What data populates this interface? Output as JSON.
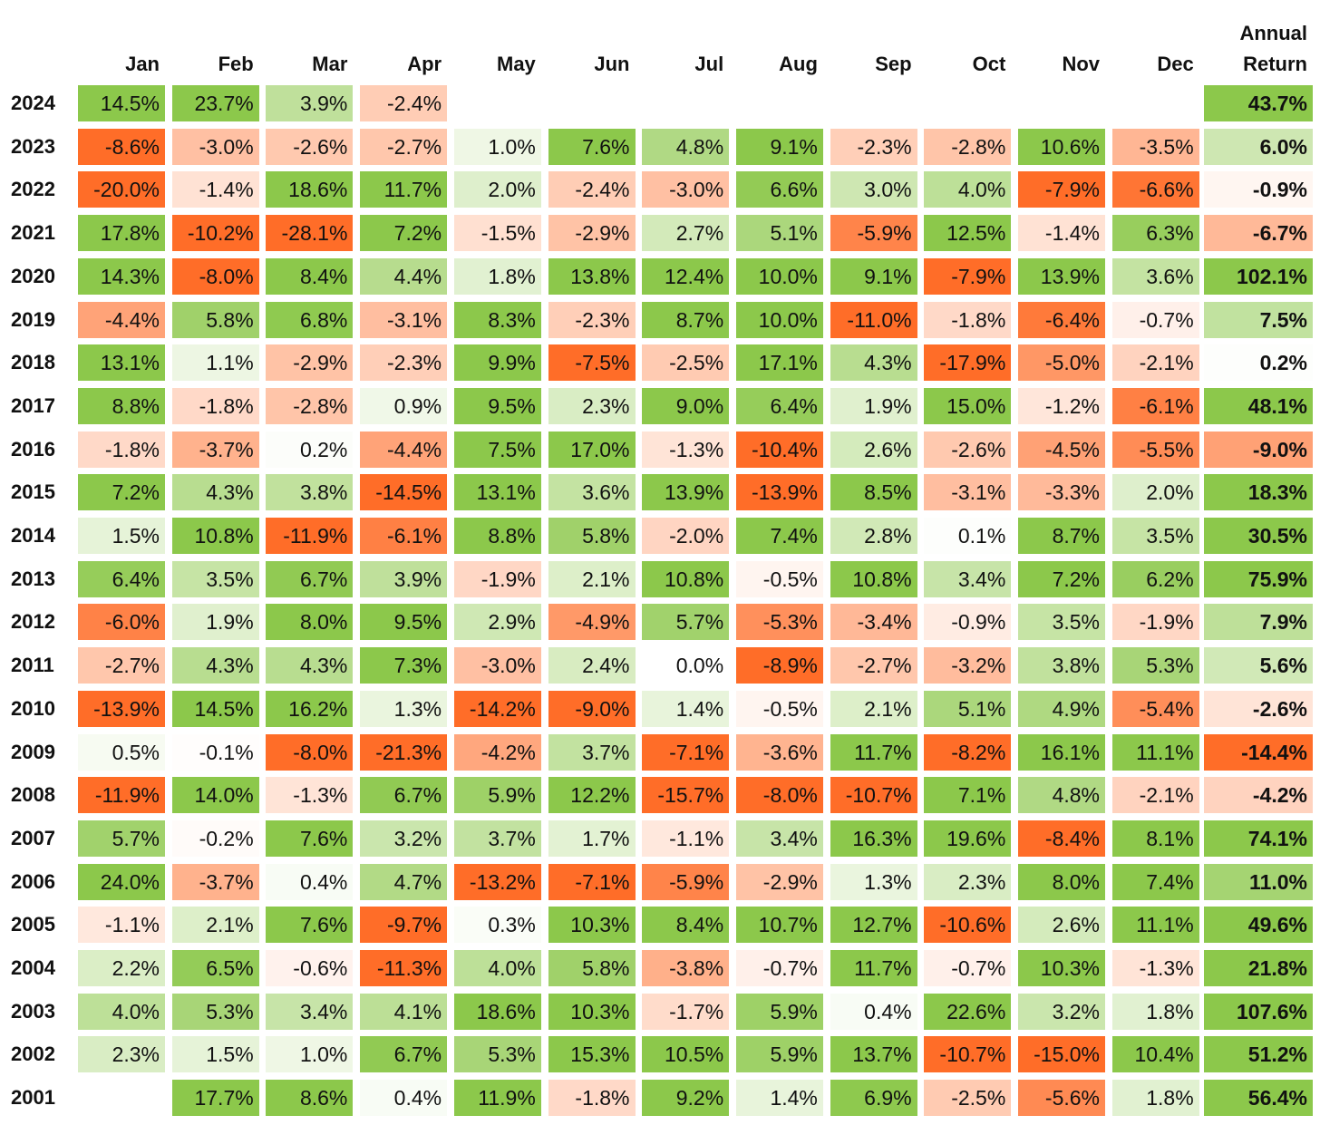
{
  "chart_data": {
    "type": "heatmap",
    "title": "",
    "columns": [
      "Jan",
      "Feb",
      "Mar",
      "Apr",
      "May",
      "Jun",
      "Jul",
      "Aug",
      "Sep",
      "Oct",
      "Nov",
      "Dec"
    ],
    "annual_header": [
      "Annual",
      "Return"
    ],
    "colors": {
      "positive": "#8cc84b",
      "negative": "#ff6d28",
      "neutral": "#ffffff"
    },
    "rows": [
      {
        "year": "2024",
        "months": [
          "14.5%",
          "23.7%",
          "3.9%",
          "-2.4%",
          "",
          "",
          "",
          "",
          "",
          "",
          "",
          ""
        ],
        "annual": "43.7%"
      },
      {
        "year": "2023",
        "months": [
          "-8.6%",
          "-3.0%",
          "-2.6%",
          "-2.7%",
          "1.0%",
          "7.6%",
          "4.8%",
          "9.1%",
          "-2.3%",
          "-2.8%",
          "10.6%",
          "-3.5%"
        ],
        "annual": "6.0%"
      },
      {
        "year": "2022",
        "months": [
          "-20.0%",
          "-1.4%",
          "18.6%",
          "11.7%",
          "2.0%",
          "-2.4%",
          "-3.0%",
          "6.6%",
          "3.0%",
          "4.0%",
          "-7.9%",
          "-6.6%"
        ],
        "annual": "-0.9%"
      },
      {
        "year": "2021",
        "months": [
          "17.8%",
          "-10.2%",
          "-28.1%",
          "7.2%",
          "-1.5%",
          "-2.9%",
          "2.7%",
          "5.1%",
          "-5.9%",
          "12.5%",
          "-1.4%",
          "6.3%"
        ],
        "annual": "-6.7%"
      },
      {
        "year": "2020",
        "months": [
          "14.3%",
          "-8.0%",
          "8.4%",
          "4.4%",
          "1.8%",
          "13.8%",
          "12.4%",
          "10.0%",
          "9.1%",
          "-7.9%",
          "13.9%",
          "3.6%"
        ],
        "annual": "102.1%"
      },
      {
        "year": "2019",
        "months": [
          "-4.4%",
          "5.8%",
          "6.8%",
          "-3.1%",
          "8.3%",
          "-2.3%",
          "8.7%",
          "10.0%",
          "-11.0%",
          "-1.8%",
          "-6.4%",
          "-0.7%"
        ],
        "annual": "7.5%"
      },
      {
        "year": "2018",
        "months": [
          "13.1%",
          "1.1%",
          "-2.9%",
          "-2.3%",
          "9.9%",
          "-7.5%",
          "-2.5%",
          "17.1%",
          "4.3%",
          "-17.9%",
          "-5.0%",
          "-2.1%"
        ],
        "annual": "0.2%"
      },
      {
        "year": "2017",
        "months": [
          "8.8%",
          "-1.8%",
          "-2.8%",
          "0.9%",
          "9.5%",
          "2.3%",
          "9.0%",
          "6.4%",
          "1.9%",
          "15.0%",
          "-1.2%",
          "-6.1%"
        ],
        "annual": "48.1%"
      },
      {
        "year": "2016",
        "months": [
          "-1.8%",
          "-3.7%",
          "0.2%",
          "-4.4%",
          "7.5%",
          "17.0%",
          "-1.3%",
          "-10.4%",
          "2.6%",
          "-2.6%",
          "-4.5%",
          "-5.5%"
        ],
        "annual": "-9.0%"
      },
      {
        "year": "2015",
        "months": [
          "7.2%",
          "4.3%",
          "3.8%",
          "-14.5%",
          "13.1%",
          "3.6%",
          "13.9%",
          "-13.9%",
          "8.5%",
          "-3.1%",
          "-3.3%",
          "2.0%"
        ],
        "annual": "18.3%"
      },
      {
        "year": "2014",
        "months": [
          "1.5%",
          "10.8%",
          "-11.9%",
          "-6.1%",
          "8.8%",
          "5.8%",
          "-2.0%",
          "7.4%",
          "2.8%",
          "0.1%",
          "8.7%",
          "3.5%"
        ],
        "annual": "30.5%"
      },
      {
        "year": "2013",
        "months": [
          "6.4%",
          "3.5%",
          "6.7%",
          "3.9%",
          "-1.9%",
          "2.1%",
          "10.8%",
          "-0.5%",
          "10.8%",
          "3.4%",
          "7.2%",
          "6.2%"
        ],
        "annual": "75.9%"
      },
      {
        "year": "2012",
        "months": [
          "-6.0%",
          "1.9%",
          "8.0%",
          "9.5%",
          "2.9%",
          "-4.9%",
          "5.7%",
          "-5.3%",
          "-3.4%",
          "-0.9%",
          "3.5%",
          "-1.9%"
        ],
        "annual": "7.9%"
      },
      {
        "year": "2011",
        "months": [
          "-2.7%",
          "4.3%",
          "4.3%",
          "7.3%",
          "-3.0%",
          "2.4%",
          "0.0%",
          "-8.9%",
          "-2.7%",
          "-3.2%",
          "3.8%",
          "5.3%"
        ],
        "annual": "5.6%"
      },
      {
        "year": "2010",
        "months": [
          "-13.9%",
          "14.5%",
          "16.2%",
          "1.3%",
          "-14.2%",
          "-9.0%",
          "1.4%",
          "-0.5%",
          "2.1%",
          "5.1%",
          "4.9%",
          "-5.4%"
        ],
        "annual": "-2.6%"
      },
      {
        "year": "2009",
        "months": [
          "0.5%",
          "-0.1%",
          "-8.0%",
          "-21.3%",
          "-4.2%",
          "3.7%",
          "-7.1%",
          "-3.6%",
          "11.7%",
          "-8.2%",
          "16.1%",
          "11.1%"
        ],
        "annual": "-14.4%"
      },
      {
        "year": "2008",
        "months": [
          "-11.9%",
          "14.0%",
          "-1.3%",
          "6.7%",
          "5.9%",
          "12.2%",
          "-15.7%",
          "-8.0%",
          "-10.7%",
          "7.1%",
          "4.8%",
          "-2.1%"
        ],
        "annual": "-4.2%"
      },
      {
        "year": "2007",
        "months": [
          "5.7%",
          "-0.2%",
          "7.6%",
          "3.2%",
          "3.7%",
          "1.7%",
          "-1.1%",
          "3.4%",
          "16.3%",
          "19.6%",
          "-8.4%",
          "8.1%"
        ],
        "annual": "74.1%"
      },
      {
        "year": "2006",
        "months": [
          "24.0%",
          "-3.7%",
          "0.4%",
          "4.7%",
          "-13.2%",
          "-7.1%",
          "-5.9%",
          "-2.9%",
          "1.3%",
          "2.3%",
          "8.0%",
          "7.4%"
        ],
        "annual": "11.0%"
      },
      {
        "year": "2005",
        "months": [
          "-1.1%",
          "2.1%",
          "7.6%",
          "-9.7%",
          "0.3%",
          "10.3%",
          "8.4%",
          "10.7%",
          "12.7%",
          "-10.6%",
          "2.6%",
          "11.1%"
        ],
        "annual": "49.6%"
      },
      {
        "year": "2004",
        "months": [
          "2.2%",
          "6.5%",
          "-0.6%",
          "-11.3%",
          "4.0%",
          "5.8%",
          "-3.8%",
          "-0.7%",
          "11.7%",
          "-0.7%",
          "10.3%",
          "-1.3%"
        ],
        "annual": "21.8%"
      },
      {
        "year": "2003",
        "months": [
          "4.0%",
          "5.3%",
          "3.4%",
          "4.1%",
          "18.6%",
          "10.3%",
          "-1.7%",
          "5.9%",
          "0.4%",
          "22.6%",
          "3.2%",
          "1.8%"
        ],
        "annual": "107.6%"
      },
      {
        "year": "2002",
        "months": [
          "2.3%",
          "1.5%",
          "1.0%",
          "6.7%",
          "5.3%",
          "15.3%",
          "10.5%",
          "5.9%",
          "13.7%",
          "-10.7%",
          "-15.0%",
          "10.4%"
        ],
        "annual": "51.2%"
      },
      {
        "year": "2001",
        "months": [
          "",
          "17.7%",
          "8.6%",
          "0.4%",
          "11.9%",
          "-1.8%",
          "9.2%",
          "1.4%",
          "6.9%",
          "-2.5%",
          "-5.6%",
          "1.8%"
        ],
        "annual": "56.4%"
      }
    ]
  }
}
